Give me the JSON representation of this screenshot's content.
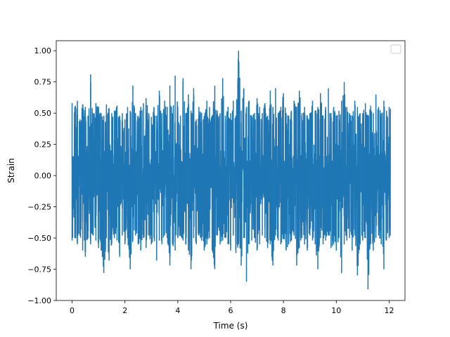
{
  "chart_data": {
    "type": "line",
    "title": "",
    "xlabel": "Time (s)",
    "ylabel": "Strain",
    "xlim": [
      -0.6,
      12.6
    ],
    "ylim": [
      -1.0,
      1.08
    ],
    "xticks": [
      0,
      2,
      4,
      6,
      8,
      10,
      12
    ],
    "xtick_labels": [
      "0",
      "2",
      "4",
      "6",
      "8",
      "10",
      "12"
    ],
    "yticks": [
      -1.0,
      -0.75,
      -0.5,
      -0.25,
      0.0,
      0.25,
      0.5,
      0.75,
      1.0
    ],
    "ytick_labels": [
      "−1.00",
      "−0.75",
      "−0.50",
      "−0.25",
      "0.00",
      "0.25",
      "0.50",
      "0.75",
      "1.00"
    ],
    "grid": false,
    "legend": {
      "placement": "top-right",
      "entries": []
    },
    "series": [
      {
        "color": "#1f77b4",
        "x_range": [
          0,
          12.05
        ],
        "envelope_step": 0.1,
        "upper": [
          0.58,
          0.55,
          0.6,
          0.45,
          0.57,
          0.55,
          0.48,
          0.81,
          0.5,
          0.58,
          0.55,
          0.5,
          0.48,
          0.57,
          0.54,
          0.5,
          0.52,
          0.56,
          0.48,
          0.5,
          0.45,
          0.55,
          0.52,
          0.72,
          0.5,
          0.48,
          0.55,
          0.58,
          0.62,
          0.5,
          0.47,
          0.55,
          0.48,
          0.68,
          0.5,
          0.6,
          0.55,
          0.72,
          0.5,
          0.8,
          0.55,
          0.48,
          0.78,
          0.5,
          0.65,
          0.52,
          0.7,
          0.45,
          0.55,
          0.5,
          0.48,
          0.6,
          0.55,
          0.48,
          0.72,
          0.52,
          0.5,
          0.78,
          0.48,
          0.55,
          0.5,
          0.6,
          0.48,
          1.0,
          0.52,
          0.7,
          0.55,
          0.6,
          0.48,
          0.5,
          0.62,
          0.55,
          0.5,
          0.58,
          0.48,
          0.68,
          0.55,
          0.7,
          0.5,
          0.55,
          0.66,
          0.5,
          0.48,
          0.52,
          0.6,
          0.55,
          0.68,
          0.5,
          0.55,
          0.48,
          0.5,
          0.6,
          0.52,
          0.55,
          0.66,
          0.48,
          0.55,
          0.7,
          0.5,
          0.55,
          0.48,
          0.52,
          0.6,
          0.75,
          0.55,
          0.5,
          0.48,
          0.6,
          0.55,
          0.5,
          0.5,
          0.58,
          0.48,
          0.56,
          0.5,
          0.65,
          0.55,
          0.5,
          0.6,
          0.52,
          0.55
        ],
        "lower": [
          -0.52,
          -0.5,
          -0.55,
          -0.48,
          -0.6,
          -0.65,
          -0.5,
          -0.55,
          -0.48,
          -0.52,
          -0.58,
          -0.6,
          -0.78,
          -0.5,
          -0.68,
          -0.55,
          -0.5,
          -0.52,
          -0.65,
          -0.48,
          -0.55,
          -0.5,
          -0.75,
          -0.52,
          -0.48,
          -0.55,
          -0.6,
          -0.5,
          -0.58,
          -0.48,
          -0.55,
          -0.5,
          -0.68,
          -0.52,
          -0.55,
          -0.48,
          -0.5,
          -0.72,
          -0.55,
          -0.6,
          -0.5,
          -0.48,
          -0.52,
          -0.55,
          -0.6,
          -0.75,
          -0.5,
          -0.55,
          -0.48,
          -0.52,
          -0.6,
          -0.55,
          -0.5,
          -0.6,
          -0.75,
          -0.48,
          -0.55,
          -0.52,
          -0.5,
          -0.55,
          -0.6,
          -0.48,
          -0.62,
          -0.55,
          -0.72,
          -0.5,
          -0.85,
          -0.55,
          -0.52,
          -0.5,
          -0.6,
          -0.55,
          -0.48,
          -0.5,
          -0.58,
          -0.55,
          -0.72,
          -0.48,
          -0.52,
          -0.55,
          -0.5,
          -0.6,
          -0.55,
          -0.52,
          -0.48,
          -0.72,
          -0.58,
          -0.5,
          -0.55,
          -0.6,
          -0.48,
          -0.52,
          -0.55,
          -0.75,
          -0.5,
          -0.55,
          -0.52,
          -0.48,
          -0.58,
          -0.55,
          -0.6,
          -0.5,
          -0.78,
          -0.55,
          -0.52,
          -0.5,
          -0.6,
          -0.48,
          -0.8,
          -0.55,
          -0.52,
          -0.5,
          -0.91,
          -0.55,
          -0.6,
          -0.5,
          -0.48,
          -0.55,
          -0.75,
          -0.52,
          -0.5
        ]
      }
    ]
  }
}
